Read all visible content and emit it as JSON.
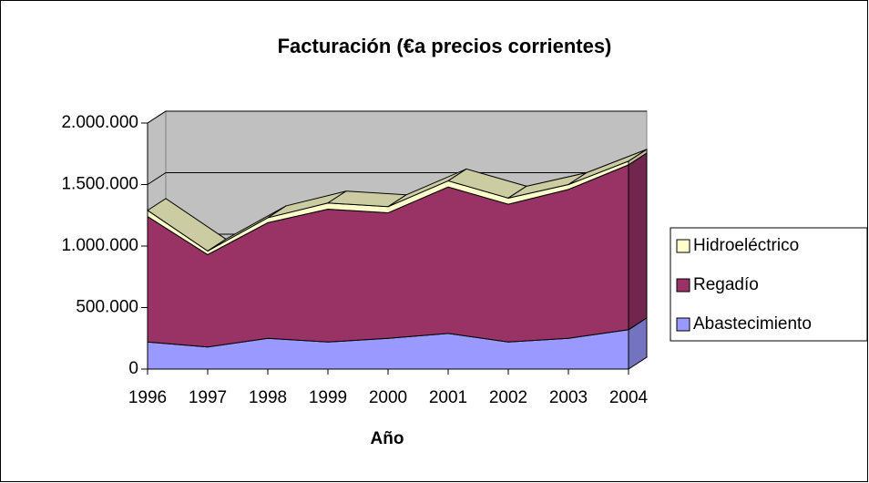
{
  "chart_data": {
    "type": "area3d",
    "stacked": true,
    "title": "Facturación (€a precios corrientes)",
    "x_label": "Año",
    "categories": [
      "1996",
      "1997",
      "1998",
      "1999",
      "2000",
      "2001",
      "2002",
      "2003",
      "2004"
    ],
    "series": [
      {
        "name": "Abastecimiento",
        "color": "#9999ff",
        "values": [
          220000,
          180000,
          250000,
          220000,
          250000,
          290000,
          220000,
          250000,
          320000
        ]
      },
      {
        "name": "Regadío",
        "color": "#993366",
        "values": [
          1020000,
          750000,
          940000,
          1080000,
          1020000,
          1190000,
          1120000,
          1210000,
          1340000
        ]
      },
      {
        "name": "Hidroeléctrico",
        "color": "#ffffcc",
        "values": [
          50000,
          30000,
          40000,
          50000,
          50000,
          50000,
          50000,
          40000,
          30000
        ]
      }
    ],
    "ylim": [
      0,
      2000000
    ],
    "yticks": [
      0,
      {
        "value": 500000,
        "label": "500.000"
      },
      {
        "value": 1000000,
        "label": "1.000.000"
      },
      {
        "value": 1500000,
        "label": "1.500.000"
      },
      {
        "value": 2000000,
        "label": "2.000.000"
      }
    ],
    "grid": true,
    "legend": "right"
  }
}
